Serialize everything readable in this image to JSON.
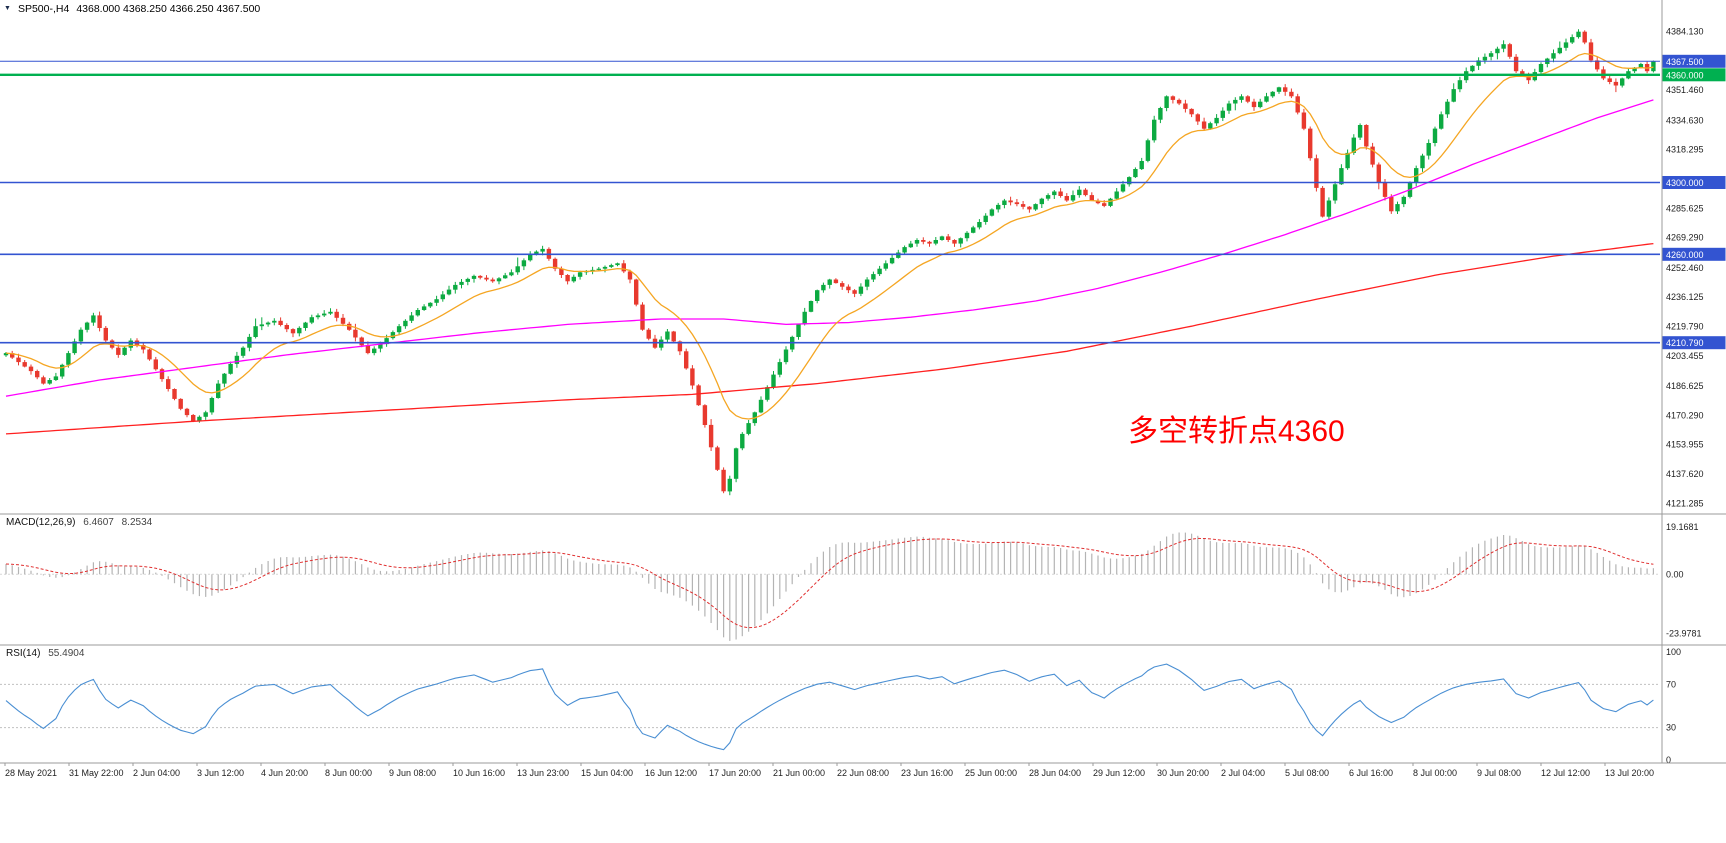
{
  "header": {
    "collapse_icon": "▼",
    "symbol_timeframe": "SP500-,H4",
    "ohlc_text": "4368.000 4368.250 4366.250 4367.500"
  },
  "colors": {
    "background": "#ffffff",
    "up": "#0caa41",
    "down": "#e8392e",
    "axis_text": "#222222",
    "separator": "#9b9b9b",
    "time_text": "#222222"
  },
  "chart_data": {
    "type": "candlestick",
    "symbol": "SP500-",
    "timeframe": "H4",
    "ohlc_current": {
      "open": 4368.0,
      "high": 4368.25,
      "low": 4366.25,
      "close": 4367.5
    },
    "candle_count": 265,
    "y_axis": {
      "min": 4116.5,
      "max": 4390.5,
      "ticks": [
        4384.13,
        4351.46,
        4334.63,
        4318.295,
        4285.625,
        4269.29,
        4252.46,
        4236.125,
        4219.79,
        4203.455,
        4186.625,
        4170.29,
        4153.955,
        4137.62,
        4121.285
      ]
    },
    "x_axis_labels": [
      "28 May 2021",
      "31 May 22:00",
      "2 Jun 04:00",
      "3 Jun 12:00",
      "4 Jun 20:00",
      "8 Jun 00:00",
      "9 Jun 08:00",
      "10 Jun 16:00",
      "13 Jun 23:00",
      "15 Jun 04:00",
      "16 Jun 12:00",
      "17 Jun 20:00",
      "21 Jun 00:00",
      "22 Jun 08:00",
      "23 Jun 16:00",
      "25 Jun 00:00",
      "28 Jun 04:00",
      "29 Jun 12:00",
      "30 Jun 20:00",
      "2 Jul 04:00",
      "5 Jul 08:00",
      "6 Jul 16:00",
      "8 Jul 00:00",
      "9 Jul 08:00",
      "12 Jul 12:00",
      "13 Jul 20:00"
    ],
    "price_path_anchors": [
      [
        0,
        4205
      ],
      [
        2,
        4200
      ],
      [
        4,
        4195
      ],
      [
        6,
        4188
      ],
      [
        8,
        4192
      ],
      [
        10,
        4205
      ],
      [
        12,
        4218
      ],
      [
        14,
        4226
      ],
      [
        16,
        4212
      ],
      [
        18,
        4204
      ],
      [
        20,
        4212
      ],
      [
        22,
        4207
      ],
      [
        24,
        4196
      ],
      [
        26,
        4185
      ],
      [
        28,
        4174
      ],
      [
        30,
        4167
      ],
      [
        32,
        4172
      ],
      [
        34,
        4188
      ],
      [
        36,
        4199
      ],
      [
        38,
        4208
      ],
      [
        40,
        4220
      ],
      [
        43,
        4223
      ],
      [
        46,
        4216
      ],
      [
        49,
        4225
      ],
      [
        52,
        4228
      ],
      [
        55,
        4218
      ],
      [
        58,
        4205
      ],
      [
        60,
        4210
      ],
      [
        63,
        4220
      ],
      [
        66,
        4229
      ],
      [
        69,
        4235
      ],
      [
        72,
        4243
      ],
      [
        75,
        4248
      ],
      [
        78,
        4245
      ],
      [
        81,
        4250
      ],
      [
        84,
        4260
      ],
      [
        86,
        4263
      ],
      [
        88,
        4252
      ],
      [
        90,
        4245
      ],
      [
        92,
        4250
      ],
      [
        95,
        4252
      ],
      [
        98,
        4255
      ],
      [
        100,
        4246
      ],
      [
        102,
        4218
      ],
      [
        104,
        4208
      ],
      [
        106,
        4217
      ],
      [
        108,
        4206
      ],
      [
        110,
        4187
      ],
      [
        112,
        4165
      ],
      [
        114,
        4140
      ],
      [
        115,
        4128
      ],
      [
        116,
        4135
      ],
      [
        117,
        4152
      ],
      [
        118,
        4160
      ],
      [
        120,
        4172
      ],
      [
        122,
        4186
      ],
      [
        124,
        4200
      ],
      [
        126,
        4214
      ],
      [
        128,
        4228
      ],
      [
        130,
        4240
      ],
      [
        132,
        4246
      ],
      [
        134,
        4242
      ],
      [
        136,
        4238
      ],
      [
        138,
        4246
      ],
      [
        140,
        4252
      ],
      [
        142,
        4258
      ],
      [
        144,
        4264
      ],
      [
        146,
        4268
      ],
      [
        148,
        4266
      ],
      [
        150,
        4270
      ],
      [
        152,
        4266
      ],
      [
        154,
        4272
      ],
      [
        156,
        4278
      ],
      [
        158,
        4285
      ],
      [
        160,
        4290
      ],
      [
        162,
        4288
      ],
      [
        164,
        4285
      ],
      [
        166,
        4291
      ],
      [
        168,
        4295
      ],
      [
        170,
        4290
      ],
      [
        172,
        4296
      ],
      [
        174,
        4290
      ],
      [
        176,
        4287
      ],
      [
        178,
        4295
      ],
      [
        180,
        4303
      ],
      [
        182,
        4312
      ],
      [
        184,
        4335
      ],
      [
        186,
        4348
      ],
      [
        188,
        4344
      ],
      [
        190,
        4338
      ],
      [
        192,
        4330
      ],
      [
        194,
        4336
      ],
      [
        196,
        4344
      ],
      [
        198,
        4348
      ],
      [
        200,
        4342
      ],
      [
        202,
        4348
      ],
      [
        204,
        4353
      ],
      [
        206,
        4348
      ],
      [
        208,
        4330
      ],
      [
        210,
        4297
      ],
      [
        211,
        4281
      ],
      [
        212,
        4290
      ],
      [
        214,
        4308
      ],
      [
        216,
        4325
      ],
      [
        217,
        4332
      ],
      [
        218,
        4320
      ],
      [
        220,
        4300
      ],
      [
        222,
        4284
      ],
      [
        224,
        4292
      ],
      [
        226,
        4308
      ],
      [
        228,
        4322
      ],
      [
        230,
        4338
      ],
      [
        232,
        4352
      ],
      [
        234,
        4362
      ],
      [
        236,
        4368
      ],
      [
        238,
        4372
      ],
      [
        240,
        4377
      ],
      [
        241,
        4370
      ],
      [
        242,
        4362
      ],
      [
        244,
        4357
      ],
      [
        246,
        4366
      ],
      [
        248,
        4372
      ],
      [
        250,
        4378
      ],
      [
        252,
        4384
      ],
      [
        253,
        4378
      ],
      [
        254,
        4368
      ],
      [
        256,
        4358
      ],
      [
        258,
        4354
      ],
      [
        260,
        4362
      ],
      [
        262,
        4366
      ],
      [
        263,
        4362
      ],
      [
        264,
        4367.5
      ]
    ],
    "moving_averages": [
      {
        "name": "fast",
        "type": "ema",
        "period": 13,
        "color": "#f5a623"
      },
      {
        "name": "mid",
        "type": "anchors",
        "color": "#ff00ff",
        "anchors": [
          [
            0,
            4181
          ],
          [
            15,
            4190
          ],
          [
            30,
            4197
          ],
          [
            45,
            4204
          ],
          [
            60,
            4210
          ],
          [
            75,
            4216
          ],
          [
            90,
            4221
          ],
          [
            105,
            4224
          ],
          [
            115,
            4224
          ],
          [
            125,
            4221
          ],
          [
            135,
            4222
          ],
          [
            145,
            4225
          ],
          [
            155,
            4229
          ],
          [
            165,
            4234
          ],
          [
            175,
            4241
          ],
          [
            185,
            4250
          ],
          [
            195,
            4260
          ],
          [
            205,
            4271
          ],
          [
            215,
            4283
          ],
          [
            225,
            4296
          ],
          [
            235,
            4310
          ],
          [
            245,
            4323
          ],
          [
            255,
            4336
          ],
          [
            264,
            4346
          ]
        ]
      },
      {
        "name": "slow",
        "type": "anchors",
        "color": "#ff2020",
        "anchors": [
          [
            0,
            4160
          ],
          [
            30,
            4167
          ],
          [
            60,
            4173
          ],
          [
            90,
            4179
          ],
          [
            110,
            4182
          ],
          [
            130,
            4188
          ],
          [
            150,
            4196
          ],
          [
            170,
            4206
          ],
          [
            190,
            4220
          ],
          [
            210,
            4235
          ],
          [
            230,
            4249
          ],
          [
            248,
            4259
          ],
          [
            264,
            4266
          ]
        ]
      }
    ],
    "levels": [
      {
        "name": "current-price",
        "price": 4367.5,
        "label": "4367.500",
        "color": "#3354d1",
        "width": 1
      },
      {
        "name": "level-4360",
        "price": 4360.0,
        "label": "4360.000",
        "color": "#00b050",
        "width": 2.4
      },
      {
        "name": "level-4300",
        "price": 4300.0,
        "label": "4300.000",
        "color": "#3354d1",
        "width": 1.6
      },
      {
        "name": "level-4260",
        "price": 4260.0,
        "label": "4260.000",
        "color": "#3354d1",
        "width": 1.6
      },
      {
        "name": "level-4210",
        "price": 4210.79,
        "label": "4210.790",
        "color": "#3354d1",
        "width": 1.6
      }
    ],
    "indicators": [
      {
        "name": "MACD",
        "label": "MACD(12,26,9)",
        "values": [
          "6.4607",
          "8.2534"
        ],
        "params": {
          "fast": 12,
          "slow": 26,
          "signal": 9
        },
        "range": {
          "min": -27,
          "max": 22
        },
        "axis_ticks": [
          {
            "value": 19.1681,
            "label": "19.1681"
          },
          {
            "value": 0,
            "label": "0.00"
          },
          {
            "value": -23.9781,
            "label": "-23.9781"
          }
        ],
        "histogram_color": "#b4b4b4",
        "signal_color": "#e03030"
      },
      {
        "name": "RSI",
        "label": "RSI(14)",
        "values": [
          "55.4904"
        ],
        "params": {
          "period": 14
        },
        "range": {
          "min": 0,
          "max": 100
        },
        "axis_ticks": [
          {
            "value": 100,
            "label": "100"
          },
          {
            "value": 70,
            "label": "70"
          },
          {
            "value": 30,
            "label": "30"
          },
          {
            "value": 0,
            "label": "0"
          }
        ],
        "level_lines": [
          70,
          30
        ],
        "line_color": "#4a8fd3"
      }
    ],
    "annotation": {
      "text": "多空转折点4360",
      "color": "#ff0000"
    }
  }
}
